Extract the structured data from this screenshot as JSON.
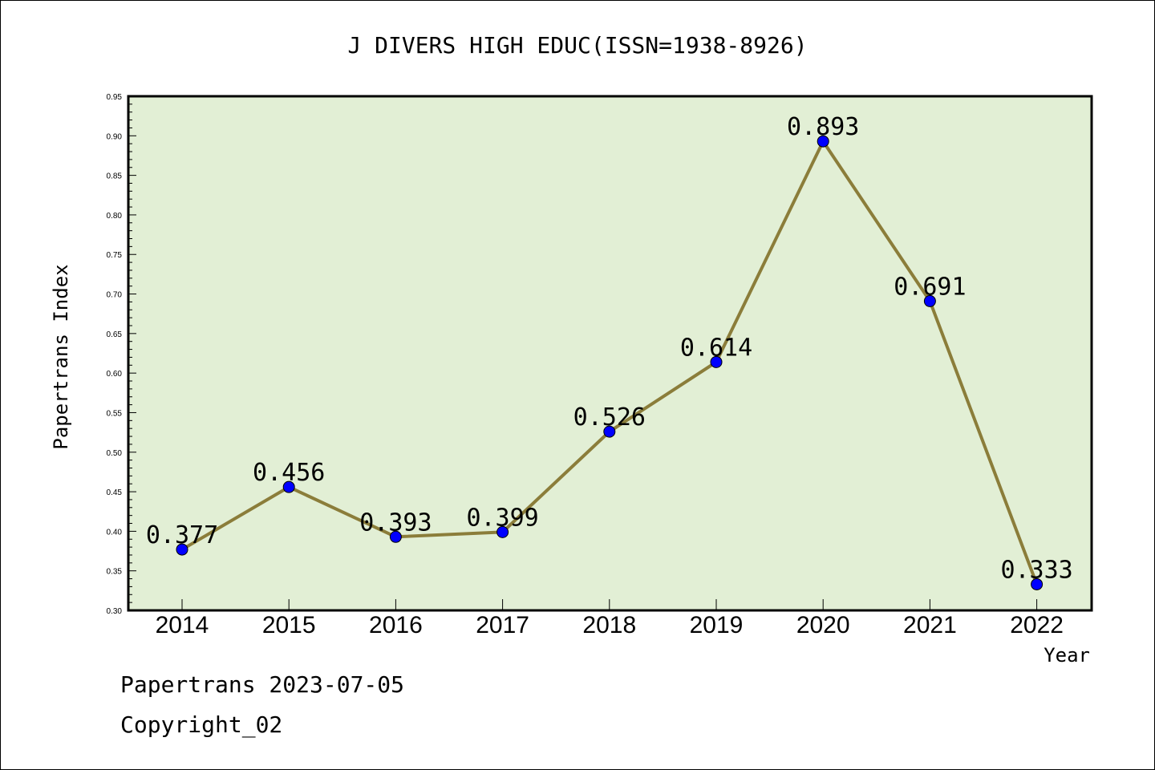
{
  "chart_data": {
    "type": "line",
    "title": "J DIVERS HIGH EDUC(ISSN=1938-8926)",
    "xlabel": "Year",
    "ylabel": "Papertrans Index",
    "categories": [
      "2014",
      "2015",
      "2016",
      "2017",
      "2018",
      "2019",
      "2020",
      "2021",
      "2022"
    ],
    "values": [
      0.377,
      0.456,
      0.393,
      0.399,
      0.526,
      0.614,
      0.893,
      0.691,
      0.333
    ],
    "data_labels": [
      "0.377",
      "0.456",
      "0.393",
      "0.399",
      "0.526",
      "0.614",
      "0.893",
      "0.691",
      "0.333"
    ],
    "ylim": [
      0.3,
      0.95
    ],
    "yticks": [
      "0.30",
      "0.35",
      "0.40",
      "0.45",
      "0.50",
      "0.55",
      "0.60",
      "0.65",
      "0.70",
      "0.75",
      "0.80",
      "0.85",
      "0.90",
      "0.95"
    ],
    "grid": false,
    "colors": {
      "line": "#8B7D3A",
      "marker": "#0000FF",
      "plot_background": "#E2EFD5"
    }
  },
  "footer": {
    "line1": "Papertrans 2023-07-05",
    "line2": "Copyright_02"
  }
}
